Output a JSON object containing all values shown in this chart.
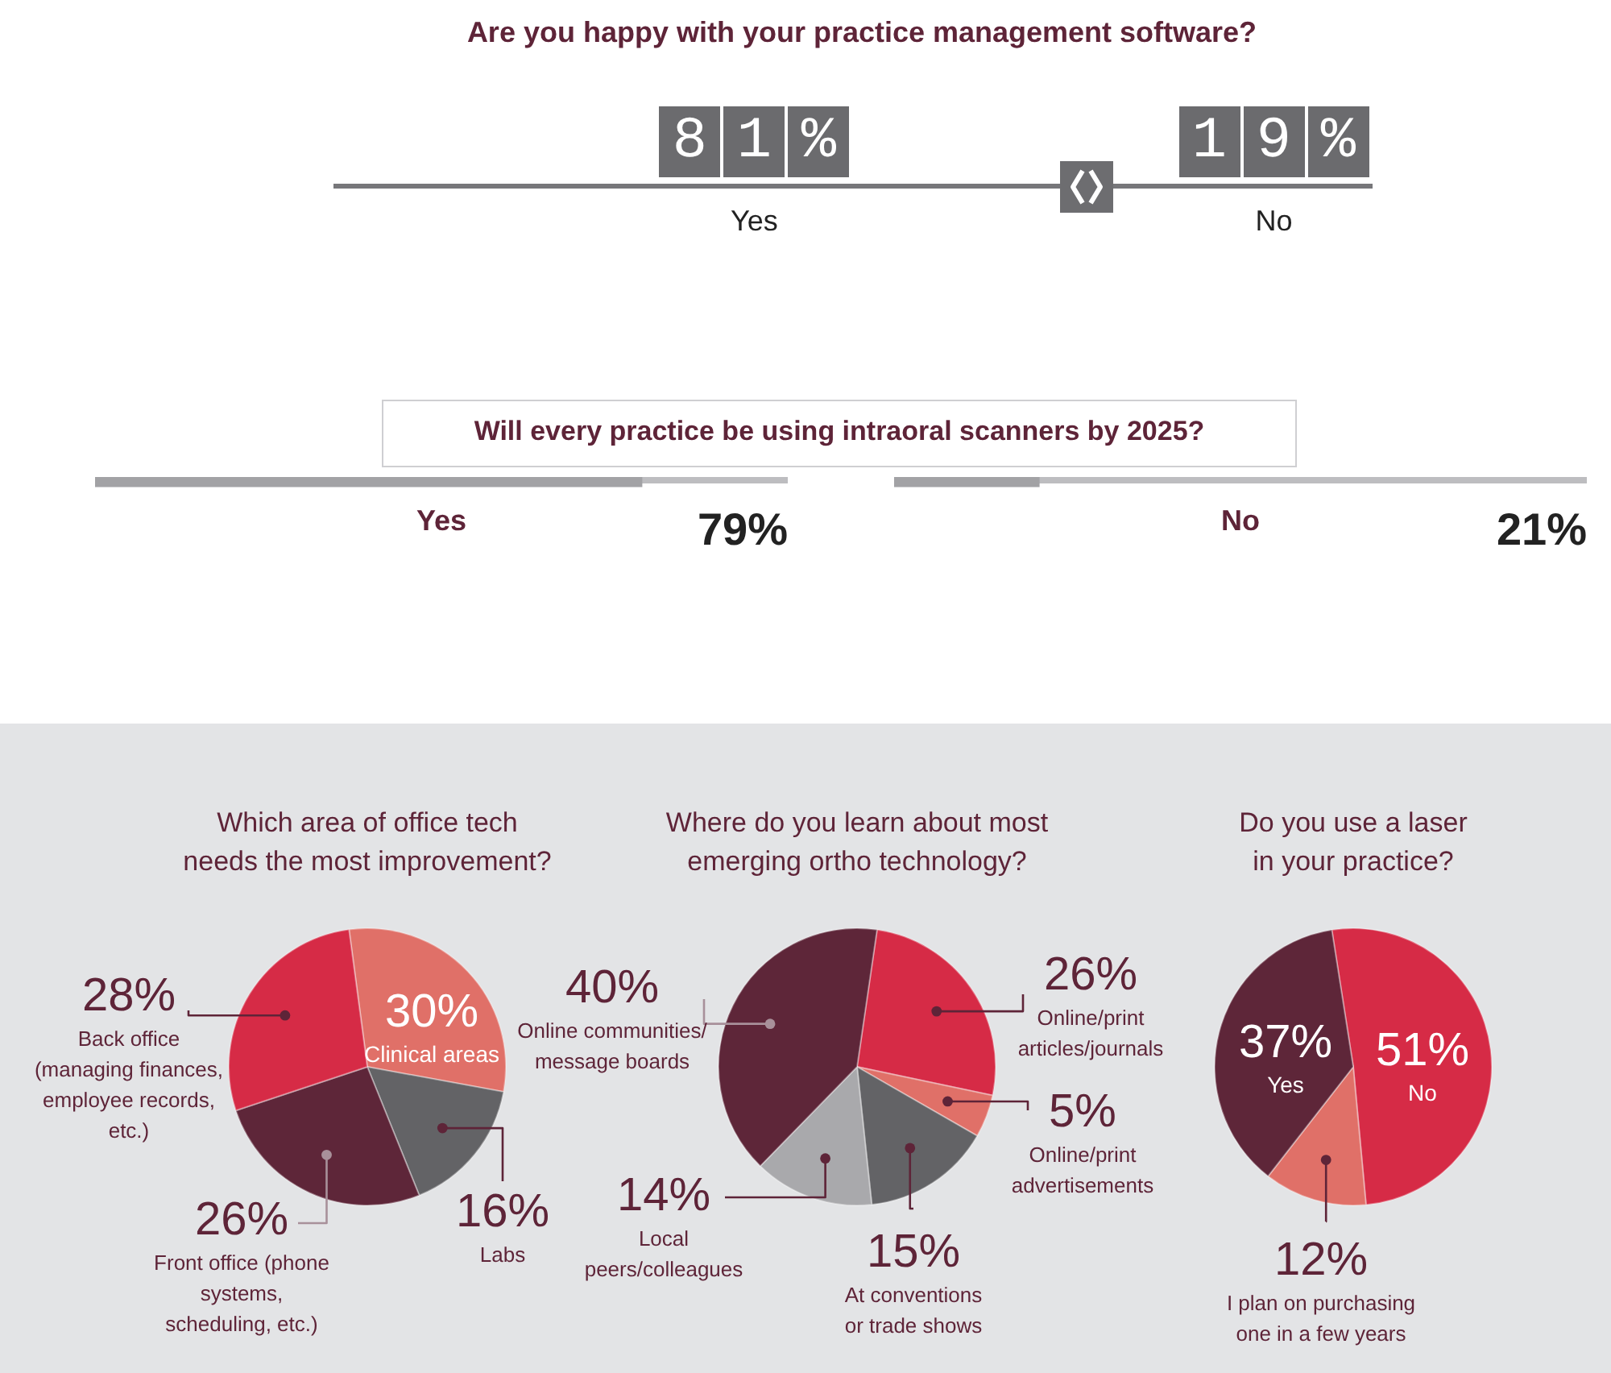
{
  "chart_data": [
    {
      "type": "other",
      "title": "Are you happy with your practice management software?",
      "categories": [
        "Yes",
        "No"
      ],
      "values": [
        81,
        19
      ],
      "value_labels": [
        "81%",
        "19%"
      ],
      "color": "#6b6b6e"
    },
    {
      "type": "other",
      "title": "Will every practice be using intraoral scanners by 2025?",
      "categories": [
        "Yes",
        "No"
      ],
      "values": [
        79,
        21
      ],
      "value_labels": [
        "79%",
        "21%"
      ],
      "color": "#a2a2a5"
    },
    {
      "type": "pie",
      "title": "Which area of office tech needs the most improvement?",
      "categories": [
        "Clinical areas",
        "Labs",
        "Front office (phone systems, scheduling, etc.)",
        "Back office (managing finances, employee records, etc.)"
      ],
      "values": [
        30,
        16,
        26,
        28
      ],
      "colors": [
        "#e07068",
        "#636366",
        "#5e2639",
        "#d62b46"
      ],
      "value_labels": [
        "30%",
        "16%",
        "26%",
        "28%"
      ]
    },
    {
      "type": "pie",
      "title": "Where do you learn about most emerging ortho technology?",
      "categories": [
        "Online/print articles/journals",
        "Online/print advertisements",
        "At conventions or trade shows",
        "Local peers/colleagues",
        "Online communities/message boards"
      ],
      "values": [
        26,
        5,
        15,
        14,
        40
      ],
      "colors": [
        "#d62b46",
        "#e07068",
        "#636366",
        "#a9a9ac",
        "#5e2639"
      ],
      "value_labels": [
        "26%",
        "5%",
        "15%",
        "14%",
        "40%"
      ]
    },
    {
      "type": "pie",
      "title": "Do you use a laser in your practice?",
      "categories": [
        "No",
        "I plan on purchasing one in a few years",
        "Yes"
      ],
      "values": [
        51,
        12,
        37
      ],
      "colors": [
        "#d62b46",
        "#e07068",
        "#5e2639"
      ],
      "value_labels": [
        "51%",
        "12%",
        "37%"
      ]
    }
  ]
}
